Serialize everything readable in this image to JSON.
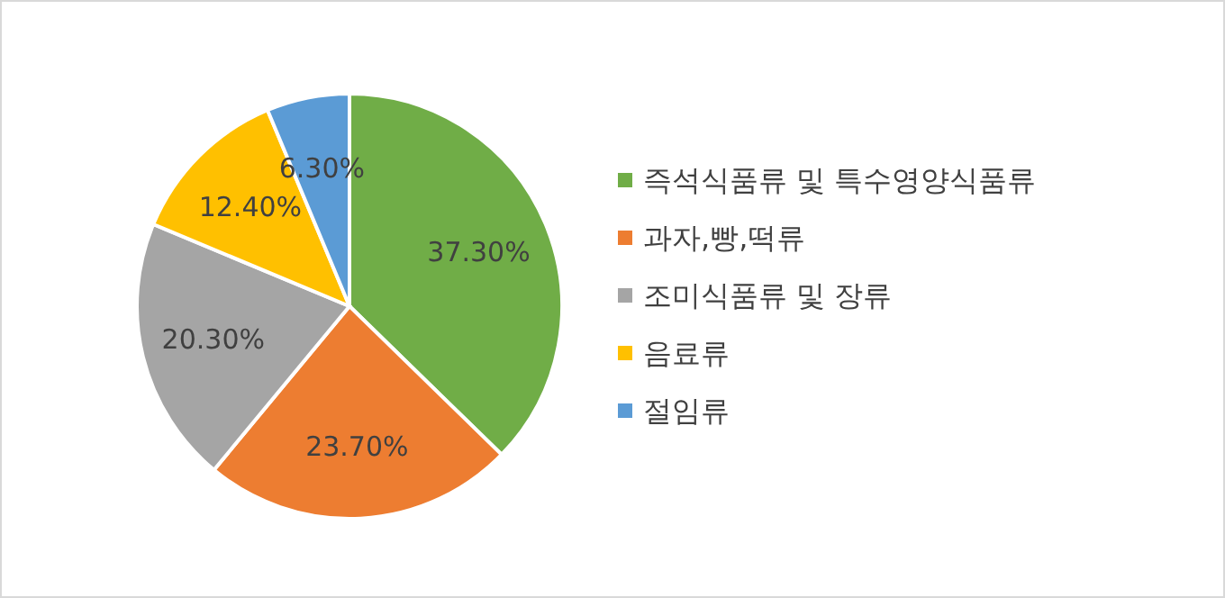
{
  "chart_data": {
    "type": "pie",
    "categories": [
      "즉석식품류 및 특수영양식품류",
      "과자,빵,떡류",
      "조미식품류 및 장류",
      "음료류",
      "절임류"
    ],
    "values": [
      37.3,
      23.7,
      20.3,
      12.4,
      6.3
    ],
    "value_labels": [
      "37.30%",
      "23.70%",
      "20.30%",
      "12.40%",
      "6.30%"
    ],
    "colors": [
      "#70ad47",
      "#ed7d31",
      "#a5a5a5",
      "#ffc000",
      "#5b9bd5"
    ],
    "legend": "right"
  }
}
